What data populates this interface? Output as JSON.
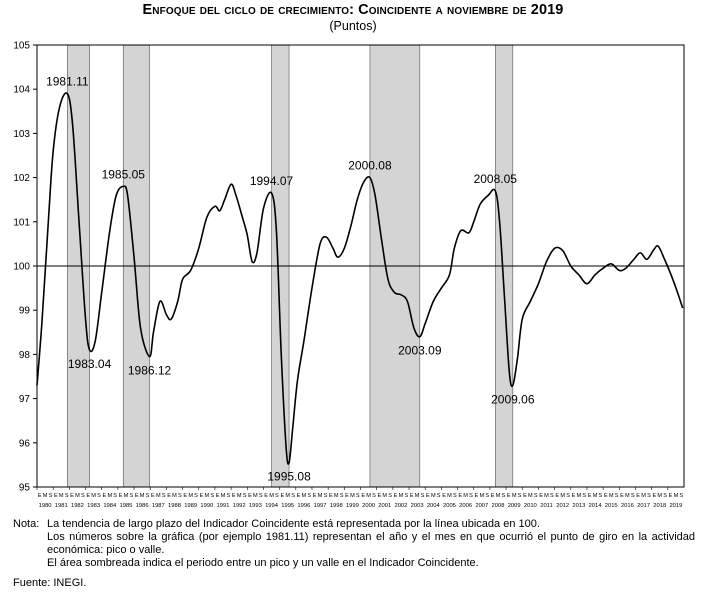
{
  "title": "Enfoque del ciclo de crecimiento: Coincidente a noviembre de 2019",
  "subtitle": "(Puntos)",
  "colors": {
    "line": "#000000",
    "recession_shade": "#d4d4d4",
    "frame": "#000000"
  },
  "chart_data": {
    "type": "line",
    "title": "Enfoque del ciclo de crecimiento: Coincidente a noviembre de 2019",
    "subtitle": "(Puntos)",
    "ylim": [
      95,
      105
    ],
    "yticks": [
      95,
      96,
      97,
      98,
      99,
      100,
      101,
      102,
      103,
      104,
      105
    ],
    "xlim": [
      1980.0,
      2020.0
    ],
    "month_letters": [
      "E",
      "M",
      "S"
    ],
    "years": [
      "1980",
      "1981",
      "1982",
      "1983",
      "1984",
      "1985",
      "1986",
      "1987",
      "1988",
      "1989",
      "1990",
      "1991",
      "1992",
      "1993",
      "1994",
      "1995",
      "1996",
      "1997",
      "1998",
      "1999",
      "2000",
      "2001",
      "2002",
      "2003",
      "2004",
      "2005",
      "2006",
      "2007",
      "2008",
      "2009",
      "2010",
      "2011",
      "2012",
      "2013",
      "2014",
      "2015",
      "2016",
      "2017",
      "2018",
      "2019"
    ],
    "reference_line": 100,
    "shaded_periods": [
      {
        "start": 1981.875,
        "end": 1983.25
      },
      {
        "start": 1985.333,
        "end": 1986.958
      },
      {
        "start": 1994.5,
        "end": 1995.583
      },
      {
        "start": 2000.583,
        "end": 2003.667
      },
      {
        "start": 2008.333,
        "end": 2009.417
      }
    ],
    "series": [
      {
        "points": [
          [
            1980.0,
            97.3
          ],
          [
            1980.3,
            98.7
          ],
          [
            1980.7,
            101.0
          ],
          [
            1981.0,
            102.6
          ],
          [
            1981.4,
            103.6
          ],
          [
            1981.875,
            103.9
          ],
          [
            1982.2,
            103.2
          ],
          [
            1982.6,
            101.0
          ],
          [
            1983.0,
            98.8
          ],
          [
            1983.25,
            98.1
          ],
          [
            1983.6,
            98.3
          ],
          [
            1984.0,
            99.4
          ],
          [
            1984.5,
            100.8
          ],
          [
            1984.9,
            101.6
          ],
          [
            1985.333,
            101.8
          ],
          [
            1985.6,
            101.6
          ],
          [
            1986.0,
            100.2
          ],
          [
            1986.4,
            98.6
          ],
          [
            1986.958,
            97.95
          ],
          [
            1987.2,
            98.5
          ],
          [
            1987.6,
            99.2
          ],
          [
            1988.0,
            98.9
          ],
          [
            1988.3,
            98.8
          ],
          [
            1988.7,
            99.2
          ],
          [
            1989.0,
            99.7
          ],
          [
            1989.5,
            99.9
          ],
          [
            1990.0,
            100.4
          ],
          [
            1990.5,
            101.1
          ],
          [
            1991.0,
            101.35
          ],
          [
            1991.3,
            101.25
          ],
          [
            1991.6,
            101.5
          ],
          [
            1992.0,
            101.85
          ],
          [
            1992.3,
            101.6
          ],
          [
            1992.7,
            101.1
          ],
          [
            1993.0,
            100.7
          ],
          [
            1993.3,
            100.1
          ],
          [
            1993.6,
            100.3
          ],
          [
            1994.0,
            101.3
          ],
          [
            1994.5,
            101.65
          ],
          [
            1994.8,
            100.8
          ],
          [
            1995.1,
            98.0
          ],
          [
            1995.4,
            95.9
          ],
          [
            1995.583,
            95.55
          ],
          [
            1995.8,
            96.3
          ],
          [
            1996.1,
            97.4
          ],
          [
            1996.5,
            98.3
          ],
          [
            1997.0,
            99.5
          ],
          [
            1997.5,
            100.5
          ],
          [
            1997.9,
            100.65
          ],
          [
            1998.3,
            100.4
          ],
          [
            1998.6,
            100.2
          ],
          [
            1999.0,
            100.4
          ],
          [
            1999.4,
            100.9
          ],
          [
            1999.8,
            101.5
          ],
          [
            2000.2,
            101.9
          ],
          [
            2000.583,
            102.0
          ],
          [
            2000.9,
            101.6
          ],
          [
            2001.3,
            100.6
          ],
          [
            2001.7,
            99.7
          ],
          [
            2002.1,
            99.4
          ],
          [
            2002.5,
            99.35
          ],
          [
            2002.9,
            99.2
          ],
          [
            2003.3,
            98.6
          ],
          [
            2003.667,
            98.4
          ],
          [
            2004.0,
            98.7
          ],
          [
            2004.5,
            99.2
          ],
          [
            2005.0,
            99.5
          ],
          [
            2005.5,
            99.8
          ],
          [
            2005.8,
            100.4
          ],
          [
            2006.2,
            100.8
          ],
          [
            2006.7,
            100.75
          ],
          [
            2007.0,
            101.0
          ],
          [
            2007.4,
            101.4
          ],
          [
            2007.9,
            101.6
          ],
          [
            2008.333,
            101.7
          ],
          [
            2008.6,
            101.0
          ],
          [
            2008.9,
            99.3
          ],
          [
            2009.2,
            97.6
          ],
          [
            2009.417,
            97.3
          ],
          [
            2009.7,
            97.9
          ],
          [
            2010.0,
            98.8
          ],
          [
            2010.5,
            99.2
          ],
          [
            2011.0,
            99.6
          ],
          [
            2011.5,
            100.1
          ],
          [
            2012.0,
            100.4
          ],
          [
            2012.5,
            100.35
          ],
          [
            2013.0,
            100.0
          ],
          [
            2013.5,
            99.8
          ],
          [
            2014.0,
            99.6
          ],
          [
            2014.5,
            99.8
          ],
          [
            2015.0,
            99.95
          ],
          [
            2015.5,
            100.05
          ],
          [
            2016.0,
            99.9
          ],
          [
            2016.4,
            99.95
          ],
          [
            2016.9,
            100.15
          ],
          [
            2017.3,
            100.3
          ],
          [
            2017.7,
            100.15
          ],
          [
            2018.1,
            100.35
          ],
          [
            2018.4,
            100.45
          ],
          [
            2018.8,
            100.15
          ],
          [
            2019.2,
            99.8
          ],
          [
            2019.6,
            99.4
          ],
          [
            2019.917,
            99.05
          ]
        ]
      }
    ],
    "annotations": [
      {
        "label": "1981.11",
        "x": 1981.875,
        "y": 103.9,
        "pos": "above"
      },
      {
        "label": "1983.04",
        "x": 1983.25,
        "y": 98.1,
        "pos": "below"
      },
      {
        "label": "1985.05",
        "x": 1985.333,
        "y": 101.8,
        "pos": "above"
      },
      {
        "label": "1986.12",
        "x": 1986.958,
        "y": 97.95,
        "pos": "below"
      },
      {
        "label": "1994.07",
        "x": 1994.5,
        "y": 101.65,
        "pos": "above"
      },
      {
        "label": "1995.08",
        "x": 1995.583,
        "y": 95.55,
        "pos": "below"
      },
      {
        "label": "2000.08",
        "x": 2000.583,
        "y": 102.0,
        "pos": "above"
      },
      {
        "label": "2003.09",
        "x": 2003.667,
        "y": 98.4,
        "pos": "below"
      },
      {
        "label": "2008.05",
        "x": 2008.333,
        "y": 101.7,
        "pos": "above"
      },
      {
        "label": "2009.06",
        "x": 2009.417,
        "y": 97.3,
        "pos": "below"
      }
    ],
    "grid": false
  },
  "notes": {
    "label": "Nota:",
    "paragraphs": [
      "La tendencia de largo plazo del Indicador Coincidente está representada por la línea ubicada en 100.",
      "Los números sobre la gráfica (por ejemplo 1981.11) representan el año y el mes en que ocurrió el punto de giro en la actividad económica: pico o valle.",
      "El área sombreada indica el periodo entre un pico y un valle en el Indicador Coincidente."
    ]
  },
  "source": "Fuente: INEGI."
}
